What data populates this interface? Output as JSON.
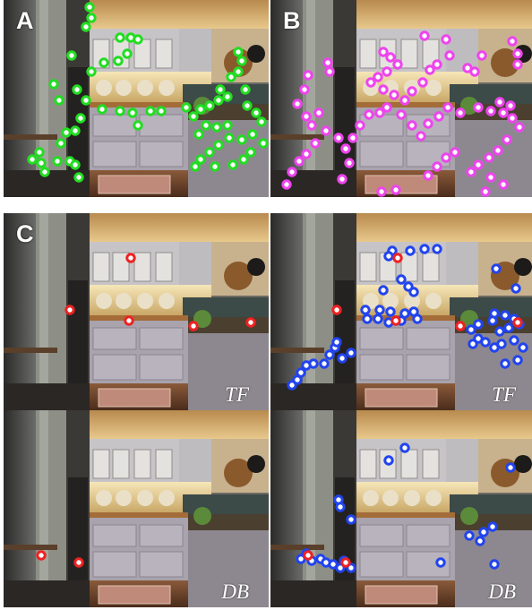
{
  "panel_labels": {
    "a": "A",
    "b": "B",
    "c": "C"
  },
  "method_labels": {
    "tf": "TF",
    "db": "DB"
  },
  "colors": {
    "green": "#22dd22",
    "magenta": "#ee44ee",
    "red": "#ee2222",
    "blue": "#2244ee"
  }
}
